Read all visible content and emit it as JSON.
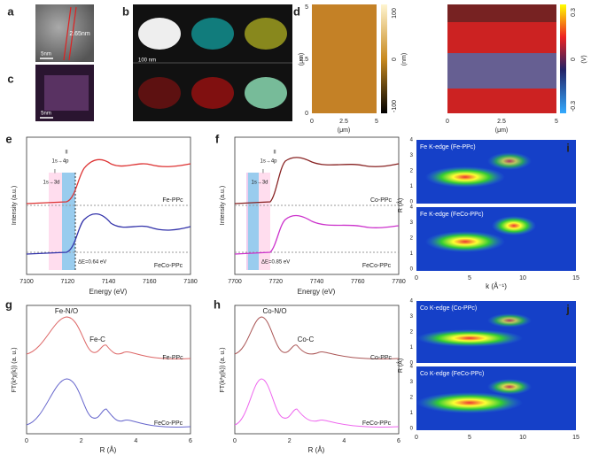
{
  "panels": {
    "a": {
      "label": "a",
      "annotation": "2.65nm",
      "scale_bar": "5nm"
    },
    "b": {
      "label": "b",
      "scale_bar": "100 nm"
    },
    "c": {
      "label": "c",
      "scale_bar": "5nm"
    },
    "d": {
      "label": "d",
      "height_map": {
        "yticks": [
          "5",
          "2.5",
          "0"
        ],
        "y_unit": "(μm)",
        "xticks": [
          "0",
          "2.5",
          "5"
        ],
        "x_unit": "(μm)",
        "colorbar_ticks": [
          "100",
          "0",
          "-100"
        ],
        "colorbar_unit": "(nm)"
      },
      "potential_map": {
        "xticks": [
          "0",
          "2.5",
          "5"
        ],
        "x_unit": "(μm)",
        "colorbar_ticks": [
          "0.3",
          "0",
          "-0.3"
        ],
        "colorbar_unit": "(V)"
      }
    },
    "e": {
      "label": "e",
      "y_label": "Intensity (a.u.)",
      "x_label": "Energy (eV)",
      "xticks": [
        "7100",
        "7120",
        "7140",
        "7160",
        "7180"
      ],
      "annotations": [
        "II",
        "1s→4p",
        "I",
        "1s→3d"
      ],
      "series": [
        "Fe-PPc",
        "FeCo-PPc"
      ],
      "delta": "ΔE=0.64 eV"
    },
    "f": {
      "label": "f",
      "y_label": "Intensity (a.u.)",
      "x_label": "Energy (eV)",
      "xticks": [
        "7700",
        "7720",
        "7740",
        "7760",
        "7780"
      ],
      "annotations": [
        "II",
        "1s→4p",
        "I",
        "1s→3d"
      ],
      "series": [
        "Co-PPc",
        "FeCo-PPc"
      ],
      "delta": "ΔE=0.85 eV"
    },
    "g": {
      "label": "g",
      "y_label": "FT(k²χ(k)) (a. u.)",
      "x_label": "R (Å)",
      "xticks": [
        "0",
        "2",
        "4",
        "6"
      ],
      "peaks": [
        "Fe-N/O",
        "Fe-C"
      ],
      "series": [
        "Fe-PPc",
        "FeCo-PPc"
      ]
    },
    "h": {
      "label": "h",
      "y_label": "FT(k²χ(k)) (a. u.)",
      "x_label": "R (Å)",
      "xticks": [
        "0",
        "2",
        "4",
        "6"
      ],
      "peaks": [
        "Co-N/O",
        "Co-C"
      ],
      "series": [
        "Co-PPc",
        "FeCo-PPc"
      ]
    },
    "i": {
      "label": "i",
      "titles": [
        "Fe K-edge (Fe-PPc)",
        "Fe K-edge (FeCo-PPc)"
      ],
      "yticks": [
        "0",
        "1",
        "2",
        "3",
        "4"
      ],
      "y_label": "R (Å)",
      "xticks": [
        "0",
        "5",
        "10",
        "15"
      ],
      "x_label": "k (Å⁻¹)"
    },
    "j": {
      "label": "j",
      "titles": [
        "Co K-edge (Co-PPc)",
        "Co K-edge (FeCo-PPc)"
      ],
      "yticks": [
        "0",
        "1",
        "2",
        "3",
        "4"
      ],
      "y_label": "R (Å)",
      "xticks": [
        "0",
        "5",
        "10",
        "15"
      ]
    }
  }
}
